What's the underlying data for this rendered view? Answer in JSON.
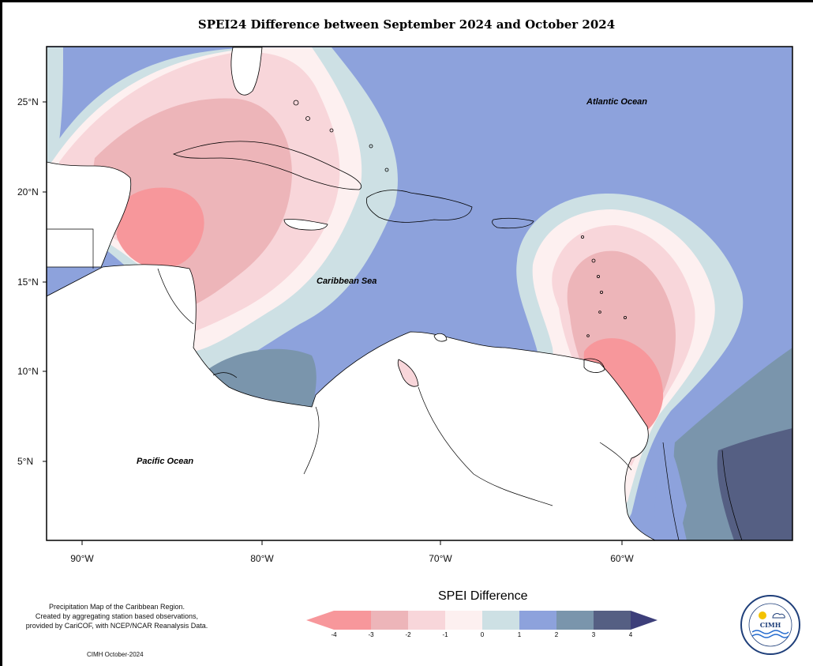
{
  "title": "SPEI24 Difference between September 2024 and October 2024",
  "map": {
    "latitude_labels": [
      "25°N",
      "20°N",
      "15°N",
      "10°N",
      "5°N"
    ],
    "longitude_labels": [
      "90°W",
      "80°W",
      "70°W",
      "60°W"
    ],
    "ocean_labels": {
      "atlantic": "Atlantic Ocean",
      "caribbean": "Caribbean Sea",
      "pacific": "Pacific Ocean"
    }
  },
  "legend": {
    "title": "SPEI Difference",
    "ticks": [
      "-4",
      "-3",
      "-2",
      "-1",
      "0",
      "1",
      "2",
      "3",
      "4"
    ],
    "colors": {
      "bin_minus4_minus3": "#f7979b",
      "bin_minus3_minus2": "#edb5b9",
      "bin_minus2_minus1": "#f8d6da",
      "bin_minus1_0": "#fdf0f0",
      "bin_0_1": "#cde0e4",
      "bin_1_2": "#8da2dc",
      "bin_2_3": "#7a95ac",
      "bin_3_4": "#555f83"
    }
  },
  "footnote": {
    "line1": "Precipitation Map of the Caribbean Region.",
    "line2": "Created by aggregating station based observations,",
    "line3": "provided by CariCOF, with NCEP/NCAR Reanalysis Data."
  },
  "credit": "CIMH October-2024",
  "logo": {
    "name": "cimh-logo",
    "abbreviation": "CIMH"
  }
}
